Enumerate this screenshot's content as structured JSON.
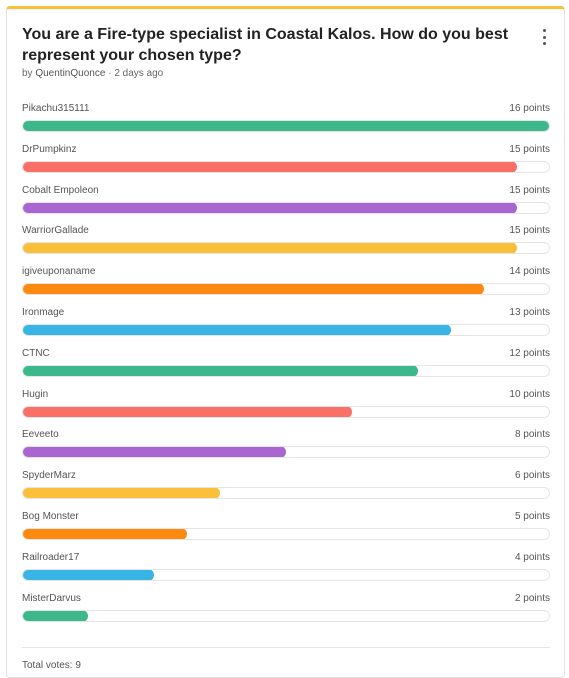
{
  "poll": {
    "title": "You are a Fire-type specialist in Coastal Kalos. How do you best represent your chosen type?",
    "by_label": "by",
    "author": "QuentinQuonce",
    "separator": "·",
    "posted": "2 days ago",
    "max_points": 16,
    "options": [
      {
        "name": "Pikachu315111",
        "points": 16,
        "points_label": "16 points",
        "color": "#3cb88a"
      },
      {
        "name": "DrPumpkinz",
        "points": 15,
        "points_label": "15 points",
        "color": "#fb7066"
      },
      {
        "name": "Cobalt Empoleon",
        "points": 15,
        "points_label": "15 points",
        "color": "#a965d0"
      },
      {
        "name": "WarriorGallade",
        "points": 15,
        "points_label": "15 points",
        "color": "#fbbf3a"
      },
      {
        "name": "igiveuponaname",
        "points": 14,
        "points_label": "14 points",
        "color": "#fd8a10"
      },
      {
        "name": "Ironmage",
        "points": 13,
        "points_label": "13 points",
        "color": "#38b5e5"
      },
      {
        "name": "CTNC",
        "points": 12,
        "points_label": "12 points",
        "color": "#3cb88a"
      },
      {
        "name": "Hugin",
        "points": 10,
        "points_label": "10 points",
        "color": "#fb7066"
      },
      {
        "name": "Eeveeto",
        "points": 8,
        "points_label": "8 points",
        "color": "#a965d0"
      },
      {
        "name": "SpyderMarz",
        "points": 6,
        "points_label": "6 points",
        "color": "#fbbf3a"
      },
      {
        "name": "Bog Monster",
        "points": 5,
        "points_label": "5 points",
        "color": "#fd8a10"
      },
      {
        "name": "Railroader17",
        "points": 4,
        "points_label": "4 points",
        "color": "#38b5e5"
      },
      {
        "name": "MisterDarvus",
        "points": 2,
        "points_label": "2 points",
        "color": "#3cb88a"
      }
    ],
    "total_votes_label": "Total votes: 9"
  },
  "icons": {
    "menu": "more-vertical-icon"
  }
}
